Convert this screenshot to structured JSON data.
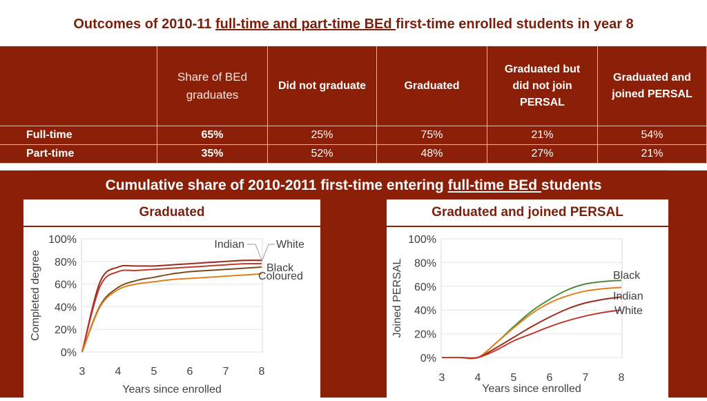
{
  "page_title": {
    "prefix": "Outcomes of 2010-11 ",
    "underlined": "full-time and part-time BEd ",
    "suffix": "first-time enrolled students in year 8"
  },
  "table": {
    "headers": [
      "",
      "Share of BEd graduates",
      "Did not graduate",
      "Graduated",
      "Graduated but did not join PERSAL",
      "Graduated and joined PERSAL"
    ],
    "rows": [
      {
        "label": "Full-time",
        "values": [
          "65%",
          "25%",
          "75%",
          "21%",
          "54%"
        ]
      },
      {
        "label": "Part-time",
        "values": [
          "35%",
          "52%",
          "48%",
          "27%",
          "21%"
        ]
      }
    ]
  },
  "subtitle": {
    "prefix": "Cumulative share of 2010-2011 first-time entering ",
    "underlined": "full-time BEd ",
    "suffix": "students"
  },
  "colors": {
    "Indian": "#9b2a1a",
    "White": "#c0392b",
    "Black": "#7a4a1a",
    "Coloured": "#e0801a",
    "Black_right": "#4a8a3a"
  },
  "chart_data": [
    {
      "type": "line",
      "title": "Graduated",
      "xlabel": "Years since enrolled",
      "ylabel": "Completed degree",
      "xlim": [
        3,
        8
      ],
      "ylim": [
        0,
        1
      ],
      "x_ticks": [
        "3",
        "4",
        "5",
        "6",
        "7",
        "8"
      ],
      "y_ticks": [
        "0%",
        "20%",
        "40%",
        "60%",
        "80%",
        "100%"
      ],
      "grid": "horizontal",
      "x": [
        3,
        3.5,
        4,
        4.5,
        5,
        5.5,
        6,
        6.5,
        7,
        7.5,
        8
      ],
      "series": [
        {
          "name": "Indian",
          "values": [
            0,
            0.62,
            0.75,
            0.76,
            0.76,
            0.77,
            0.78,
            0.79,
            0.8,
            0.81,
            0.81
          ]
        },
        {
          "name": "White",
          "values": [
            0,
            0.58,
            0.71,
            0.72,
            0.73,
            0.74,
            0.75,
            0.76,
            0.77,
            0.78,
            0.78
          ]
        },
        {
          "name": "Black",
          "values": [
            0,
            0.41,
            0.57,
            0.63,
            0.66,
            0.69,
            0.71,
            0.72,
            0.73,
            0.74,
            0.75
          ]
        },
        {
          "name": "Coloured",
          "values": [
            0,
            0.4,
            0.55,
            0.6,
            0.62,
            0.64,
            0.65,
            0.66,
            0.67,
            0.68,
            0.69
          ]
        }
      ]
    },
    {
      "type": "line",
      "title": "Graduated and joined PERSAL",
      "xlabel": "Years since enrolled",
      "ylabel": "Joined PERSAL",
      "xlim": [
        3,
        8
      ],
      "ylim": [
        0,
        1
      ],
      "x_ticks": [
        "3",
        "4",
        "5",
        "6",
        "7",
        "8"
      ],
      "y_ticks": [
        "0%",
        "20%",
        "40%",
        "60%",
        "80%",
        "100%"
      ],
      "grid": "horizontal",
      "x": [
        3,
        3.5,
        4,
        4.5,
        5,
        5.5,
        6,
        6.5,
        7,
        7.5,
        8
      ],
      "series": [
        {
          "name": "Black",
          "values": [
            0,
            0,
            0,
            0.12,
            0.26,
            0.39,
            0.49,
            0.57,
            0.62,
            0.64,
            0.65
          ]
        },
        {
          "name": "",
          "values": [
            0,
            0,
            0,
            0.12,
            0.25,
            0.37,
            0.46,
            0.52,
            0.56,
            0.58,
            0.59
          ]
        },
        {
          "name": "Indian",
          "values": [
            0,
            0,
            0,
            0.08,
            0.17,
            0.26,
            0.34,
            0.41,
            0.46,
            0.49,
            0.51
          ]
        },
        {
          "name": "White",
          "values": [
            0,
            0,
            0,
            0.06,
            0.14,
            0.2,
            0.26,
            0.31,
            0.35,
            0.38,
            0.4
          ]
        }
      ]
    }
  ]
}
